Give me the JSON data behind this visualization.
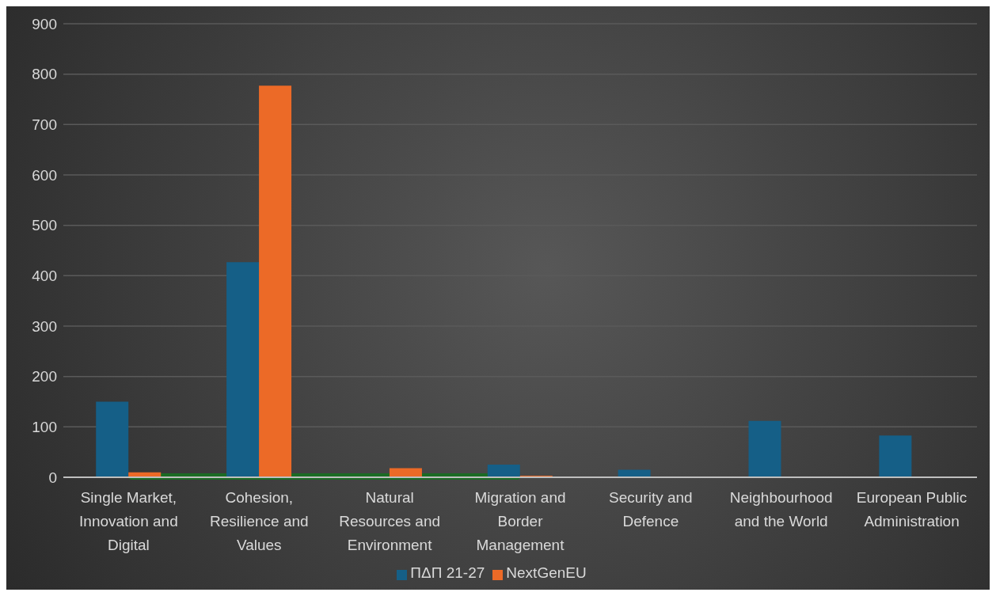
{
  "chart_data": {
    "type": "bar",
    "categories": [
      "Single Market, Innovation and Digital",
      "Cohesion, Resilience and Values",
      "Natural Resources and Environment",
      "Migration and Border Management",
      "Security and Defence",
      "Neighbourhood and the World",
      "European Public Administration"
    ],
    "series": [
      {
        "name": "ΠΔΠ 21-27",
        "color": "#155f87",
        "values": [
          150,
          427,
          0,
          25,
          15,
          112,
          83
        ]
      },
      {
        "name": "NextGenEU",
        "color": "#ec6a27",
        "values": [
          10,
          777,
          18,
          3,
          0,
          0,
          0
        ]
      }
    ],
    "ylim": [
      0,
      900
    ],
    "yticks": [
      0,
      100,
      200,
      300,
      400,
      500,
      600,
      700,
      800,
      900
    ],
    "grid": "y",
    "legend": "bottom"
  }
}
